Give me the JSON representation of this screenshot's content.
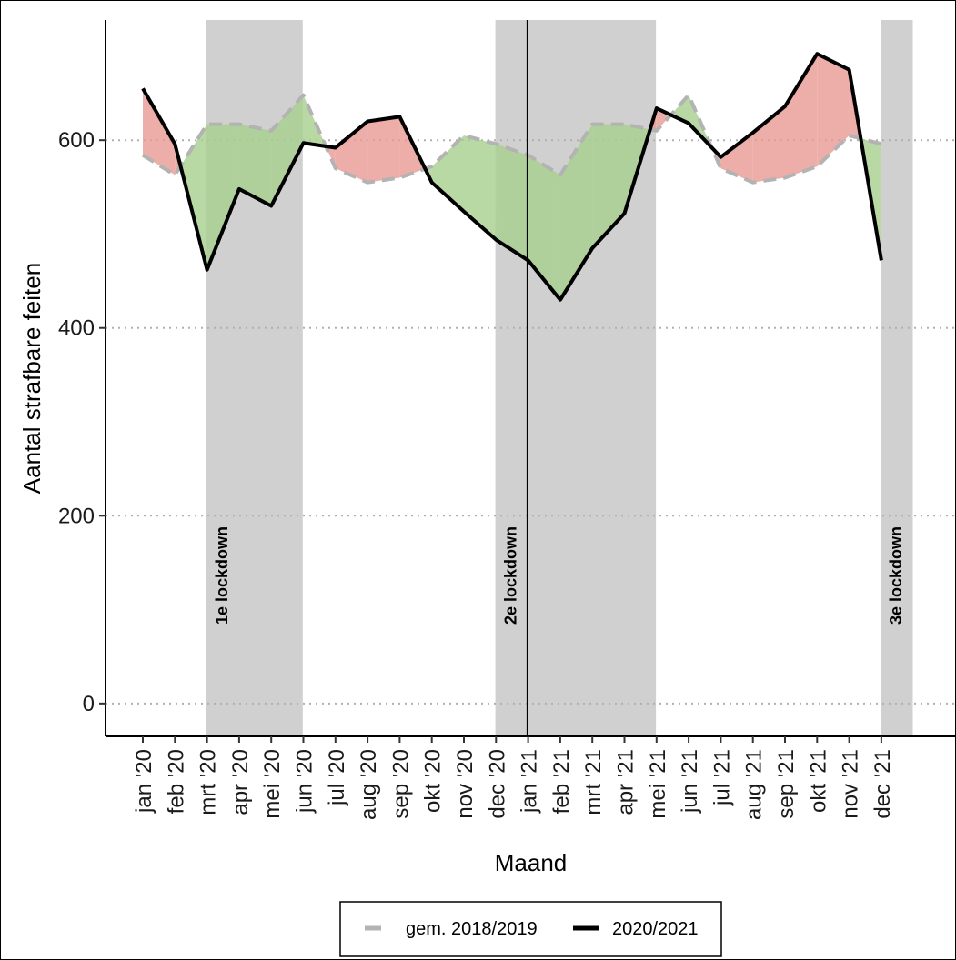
{
  "chart_data": {
    "type": "line",
    "title": "",
    "xlabel": "Maand",
    "ylabel": "Aantal strafbare feiten",
    "categories": [
      "jan '20",
      "feb '20",
      "mrt '20",
      "apr '20",
      "mei '20",
      "jun '20",
      "jul '20",
      "aug '20",
      "sep '20",
      "okt '20",
      "nov '20",
      "dec '20",
      "jan '21",
      "feb '21",
      "mrt '21",
      "apr '21",
      "mei '21",
      "jun '21",
      "jul '21",
      "aug '21",
      "sep '21",
      "okt '21",
      "nov '21",
      "dec '21"
    ],
    "ylim": [
      -35,
      728
    ],
    "yticks": [
      0,
      200,
      400,
      600
    ],
    "ytick_labels": [
      "0",
      "200",
      "400",
      "600"
    ],
    "grid": "horizontal dotted",
    "series": [
      {
        "name": "gem. 2018/2019",
        "style": "dashed",
        "color": "#b3b3b3",
        "values": [
          584,
          563,
          617,
          617,
          610,
          648,
          570,
          555,
          560,
          572,
          605,
          596,
          584,
          563,
          617,
          617,
          610,
          648,
          570,
          555,
          560,
          572,
          605,
          596
        ]
      },
      {
        "name": "2020/2021",
        "style": "solid",
        "color": "#000000",
        "values": [
          655,
          596,
          462,
          548,
          530,
          597,
          592,
          620,
          625,
          555,
          524,
          494,
          472,
          430,
          485,
          522,
          634,
          618,
          582,
          608,
          636,
          692,
          675,
          472
        ]
      }
    ],
    "lockdowns": [
      {
        "label": "1e lockdown",
        "start": 1.98,
        "end": 4.98
      },
      {
        "label": "2e lockdown",
        "start": 10.98,
        "end": 15.98
      },
      {
        "label": "3e lockdown",
        "start": 22.98,
        "end": 23.98
      }
    ],
    "vline_at": 11.98,
    "fill_colors": {
      "above": "#e89894",
      "below": "#a8d08d"
    },
    "band_color": "#d0d0d0",
    "legend": {
      "placement": "bottom",
      "entries": [
        "gem. 2018/2019",
        "2020/2021"
      ]
    }
  }
}
